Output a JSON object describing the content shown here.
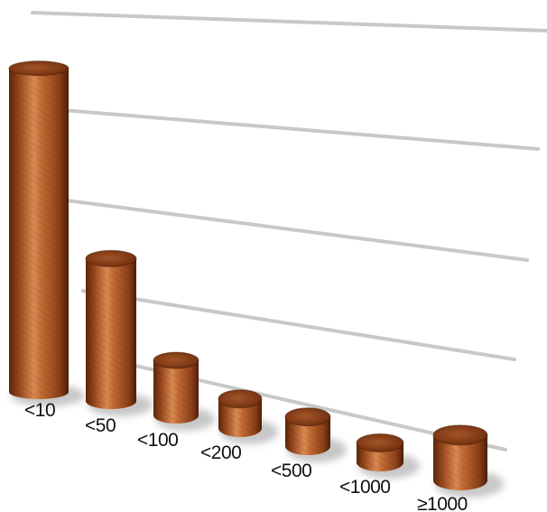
{
  "chart_data": {
    "type": "bar",
    "style": "3d-cylinder",
    "title": "",
    "xlabel": "",
    "ylabel": "",
    "grid": true,
    "legend": "none",
    "categories": [
      "<10",
      "<50",
      "<100",
      "<200",
      "<500",
      "<1000",
      "≥1000"
    ],
    "values": [
      100,
      44,
      17,
      9,
      9,
      6,
      14
    ],
    "ylim": [
      0,
      120
    ],
    "colors": {
      "bar_dark": "#6b2e0f",
      "bar_mid": "#b65e2a",
      "bar_light": "#e7a36f",
      "grid": "#c8c8c8"
    }
  }
}
